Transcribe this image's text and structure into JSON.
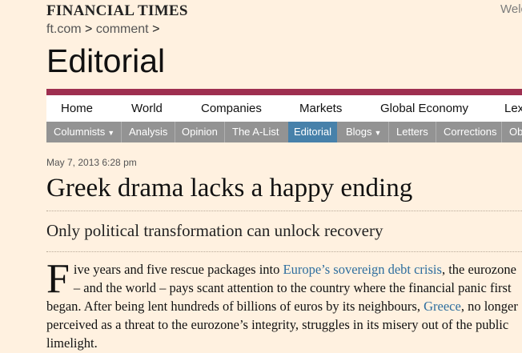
{
  "masthead": {
    "logo": "FINANCIAL TIMES",
    "welcome": "Welc"
  },
  "breadcrumb": {
    "home": "ft.com",
    "section": "comment",
    "separator": ">"
  },
  "section_title": "Editorial",
  "primary_nav": [
    "Home",
    "World",
    "Companies",
    "Markets",
    "Global Economy",
    "Lex"
  ],
  "secondary_nav": [
    {
      "label": "Columnists",
      "dropdown": true
    },
    {
      "label": "Analysis",
      "dropdown": false
    },
    {
      "label": "Opinion",
      "dropdown": false
    },
    {
      "label": "The A-List",
      "dropdown": false
    },
    {
      "label": "Editorial",
      "dropdown": false,
      "active": true
    },
    {
      "label": "Blogs",
      "dropdown": true
    },
    {
      "label": "Letters",
      "dropdown": false
    },
    {
      "label": "Corrections",
      "dropdown": false
    },
    {
      "label": "Ob",
      "dropdown": false
    }
  ],
  "caret_glyph": "▼",
  "article": {
    "dateline": "May 7, 2013 6:28 pm",
    "headline": "Greek drama lacks a happy ending",
    "standfirst": "Only political transformation can unlock recovery",
    "dropcap": "F",
    "para_1": "ive years and five rescue packages into ",
    "link_1": "Europe’s sovereign debt crisis",
    "para_2": ", the eurozone – and the world – pays scant attention to the country where the financial panic first began. After being lent hundreds of billions of euros by its neighbours, ",
    "link_2": "Greece",
    "para_3": ", no longer perceived as a threat to the eurozone’s integrity, struggles in its misery out of the public limelight."
  },
  "colors": {
    "background": "#fff1e0",
    "brand_bar": "#9e2f50",
    "subnav_bg": "#939393",
    "subnav_active": "#4781aa",
    "link": "#2e6e9e"
  }
}
